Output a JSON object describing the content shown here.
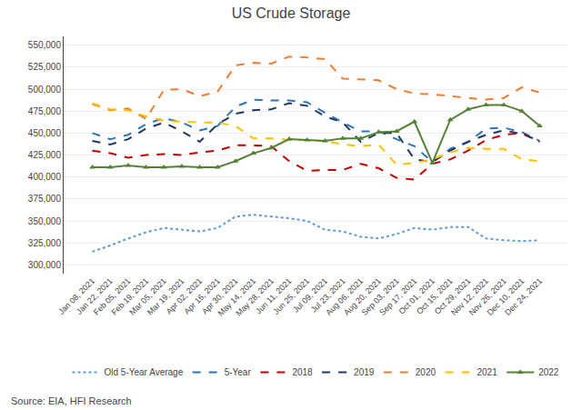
{
  "chart_data": {
    "type": "line",
    "title": "US Crude Storage",
    "annotations": [
      "Source: EIA, HFI Research"
    ],
    "categories": [
      "Jan 08, 2021",
      "Jan 22, 2021",
      "Feb 05, 2021",
      "Feb 19, 2021",
      "Mar 05, 2021",
      "Mar 19, 2021",
      "Apr 02, 2021",
      "Apr 16, 2021",
      "Apr 30, 2021",
      "May 14, 2021",
      "May 28, 2021",
      "Jun 11, 2021",
      "Jun 25, 2021",
      "Jul 09, 2021",
      "Jul 23, 2021",
      "Aug 06, 2021",
      "Aug 20, 2021",
      "Sep 03, 2021",
      "Sep 17, 2021",
      "Oct 01, 2021",
      "Oct 15, 2021",
      "Oct 29, 2021",
      "Nov 12, 2021",
      "Nov 26, 2021",
      "Dec 10, 2021",
      "Dec 24, 2021"
    ],
    "ylim": [
      290000,
      560000
    ],
    "yticks": [
      {
        "value": 300000,
        "label": "300,000"
      },
      {
        "value": 325000,
        "label": "325,000"
      },
      {
        "value": 350000,
        "label": "350,000"
      },
      {
        "value": 375000,
        "label": "375,000"
      },
      {
        "value": 400000,
        "label": "400,000"
      },
      {
        "value": 425000,
        "label": "425,000"
      },
      {
        "value": 450000,
        "label": "450,000"
      },
      {
        "value": 475000,
        "label": "475,000"
      },
      {
        "value": 500000,
        "label": "500,000"
      },
      {
        "value": 525000,
        "label": "525,000"
      },
      {
        "value": 550000,
        "label": "550,000"
      }
    ],
    "grid": true,
    "legend": "bottom",
    "series": [
      {
        "name": "Old 5-Year Average",
        "color": "#5b9bd5",
        "line_style": "dotted",
        "values": [
          315000,
          322000,
          330000,
          337000,
          342000,
          340000,
          338000,
          342000,
          355000,
          357000,
          355000,
          353000,
          350000,
          340000,
          338000,
          332000,
          330000,
          335000,
          342000,
          340000,
          343000,
          343000,
          330000,
          328000,
          327000,
          328000
        ]
      },
      {
        "name": "5-Year",
        "color": "#2e75b6",
        "line_style": "dashed",
        "values": [
          450000,
          443000,
          448000,
          460000,
          467000,
          462000,
          453000,
          458000,
          480000,
          488000,
          487000,
          487000,
          485000,
          473000,
          462000,
          452000,
          452000,
          443000,
          435000,
          417000,
          432000,
          440000,
          455000,
          456000,
          451000,
          441000
        ]
      },
      {
        "name": "2018",
        "color": "#c00000",
        "line_style": "dashed",
        "values": [
          430000,
          427000,
          422000,
          425000,
          426000,
          425000,
          428000,
          430000,
          436000,
          436000,
          435000,
          418000,
          407000,
          408000,
          408000,
          415000,
          410000,
          399000,
          397000,
          415000,
          420000,
          430000,
          442000,
          448000,
          450000,
          440000
        ]
      },
      {
        "name": "2019",
        "color": "#1f3864",
        "line_style": "dashed",
        "values": [
          441000,
          437000,
          443000,
          455000,
          462000,
          452000,
          440000,
          460000,
          472000,
          476000,
          477000,
          484000,
          481000,
          469000,
          462000,
          440000,
          450000,
          450000,
          420000,
          417000,
          430000,
          440000,
          448000,
          453000,
          449000,
          441000
        ]
      },
      {
        "name": "2020",
        "color": "#ed7d31",
        "line_style": "dashed",
        "values": [
          483000,
          476000,
          478000,
          466000,
          499000,
          500000,
          492000,
          497000,
          527000,
          530000,
          529000,
          537000,
          536000,
          534000,
          512000,
          511000,
          510000,
          500000,
          495000,
          494000,
          492000,
          490000,
          488000,
          490000,
          502000,
          496000
        ]
      },
      {
        "name": "2021",
        "color": "#ffc000",
        "line_style": "dashed",
        "values": [
          484000,
          477000,
          476000,
          469000,
          464000,
          463000,
          462000,
          462000,
          458000,
          444000,
          444000,
          442000,
          442000,
          441000,
          437000,
          435000,
          437000,
          414000,
          416000,
          420000,
          428000,
          433000,
          432000,
          432000,
          420000,
          418000
        ]
      },
      {
        "name": "2022",
        "color": "#548235",
        "line_style": "solid",
        "marker": "triangle-up",
        "values": [
          411000,
          411000,
          413000,
          411000,
          411000,
          412000,
          411000,
          411000,
          418000,
          427000,
          433000,
          443000,
          442000,
          441000,
          444000,
          444000,
          451000,
          452000,
          463000,
          416000,
          465000,
          477000,
          482000,
          482000,
          475000,
          458000
        ]
      }
    ]
  }
}
